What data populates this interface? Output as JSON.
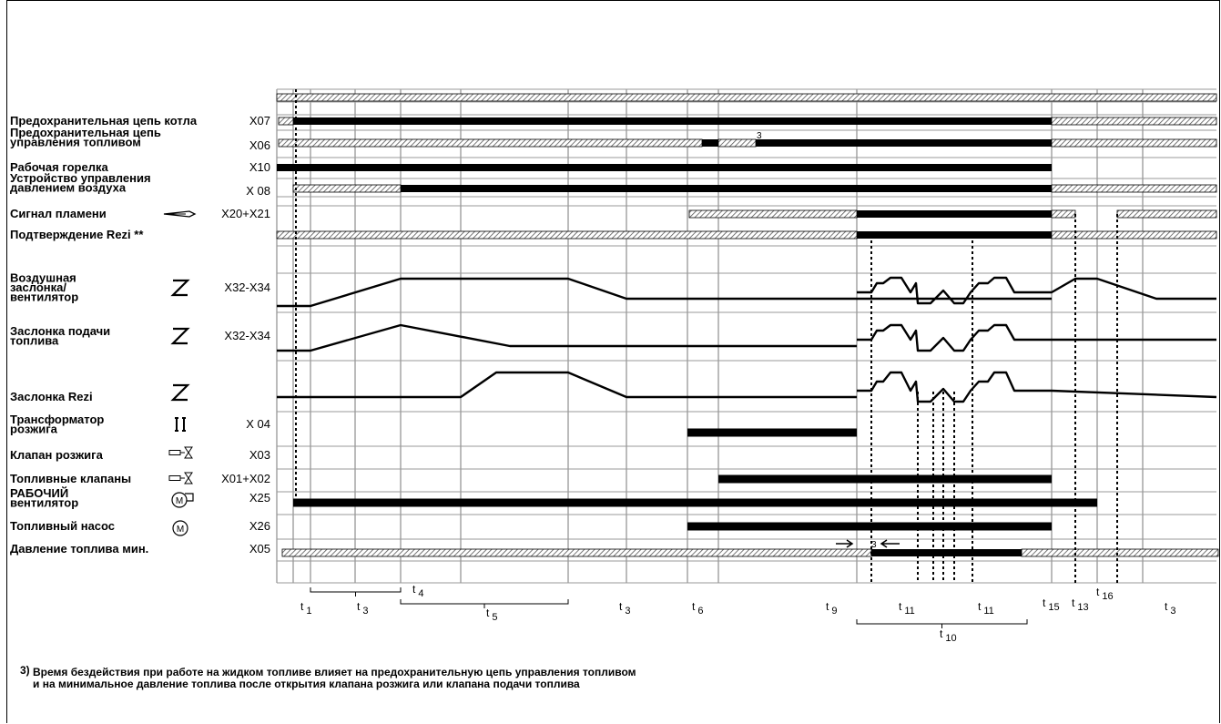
{
  "rows": [
    {
      "key": "general",
      "label": [],
      "terminal": "",
      "icon": ""
    },
    {
      "key": "boiler",
      "label": [
        "Предохранительная цепь котла"
      ],
      "terminal": "X07",
      "icon": ""
    },
    {
      "key": "fuelchain",
      "label": [
        "Предохранительная цепь",
        "управления топливом"
      ],
      "terminal": "X06",
      "icon": ""
    },
    {
      "key": "burner",
      "label": [
        "Рабочая горелка"
      ],
      "terminal": "X10",
      "icon": ""
    },
    {
      "key": "airpress",
      "label": [
        "Устройство управления",
        "давлением воздуха"
      ],
      "terminal": "X 08",
      "icon": ""
    },
    {
      "key": "flame",
      "label": [
        "Сигнал пламени"
      ],
      "terminal": "X20+X21",
      "icon": "flame-sensor-icon"
    },
    {
      "key": "rezi_conf",
      "label": [
        "Подтверждение Rezi **"
      ],
      "terminal": "",
      "icon": ""
    },
    {
      "key": "air_damper",
      "label": [
        "Воздушная",
        "заслонка/",
        "вентилятор"
      ],
      "terminal": "X32-X34",
      "icon": "actuator-icon"
    },
    {
      "key": "fuel_damper",
      "label": [
        "Заслонка подачи",
        "топлива"
      ],
      "terminal": "X32-X34",
      "icon": "actuator-icon"
    },
    {
      "key": "rezi_damper",
      "label": [
        "Заслонка Rezi"
      ],
      "terminal": "",
      "icon": "actuator-icon"
    },
    {
      "key": "transformer",
      "label": [
        "Трансформатор",
        "розжига"
      ],
      "terminal": "X 04",
      "icon": "transformer-icon"
    },
    {
      "key": "ign_valve",
      "label": [
        "Клапан розжига"
      ],
      "terminal": "X03",
      "icon": "valve-icon"
    },
    {
      "key": "fuel_valves",
      "label": [
        "Топливные клапаны"
      ],
      "terminal": "X01+X02",
      "icon": "valve-icon"
    },
    {
      "key": "fan",
      "label": [
        "РАБОЧИЙ",
        "вентилятор"
      ],
      "terminal": "X25",
      "icon": "fan-motor-icon"
    },
    {
      "key": "pump",
      "label": [
        "Топливный насос"
      ],
      "terminal": "X26",
      "icon": "pump-motor-icon"
    },
    {
      "key": "minpress",
      "label": [
        "Давление топлива мин."
      ],
      "terminal": "X05",
      "icon": ""
    }
  ],
  "time_labels": [
    {
      "main": "t",
      "sub": "1"
    },
    {
      "main": "t",
      "sub": "3"
    },
    {
      "main": "t",
      "sub": "4"
    },
    {
      "main": "t",
      "sub": "5"
    },
    {
      "main": "t",
      "sub": "3"
    },
    {
      "main": "t",
      "sub": "6"
    },
    {
      "main": "t",
      "sub": "9"
    },
    {
      "main": "t",
      "sub": "11"
    },
    {
      "main": "t",
      "sub": "11"
    },
    {
      "main": "t",
      "sub": "10"
    },
    {
      "main": "t",
      "sub": "15"
    },
    {
      "main": "t",
      "sub": "13"
    },
    {
      "main": "t",
      "sub": "16"
    },
    {
      "main": "t",
      "sub": "3"
    }
  ],
  "marker_3": "3",
  "footnote": {
    "superscript": "3)",
    "line1": "Время бездействия при работе на жидком топливе влияет на предохранительную цепь управления топливом",
    "line2": "и на минимальное давление топлива после открытия клапана розжига или клапана подачи топлива"
  },
  "colors": {
    "line": "#000000",
    "grid": "#888888",
    "hatch": "#555555"
  }
}
